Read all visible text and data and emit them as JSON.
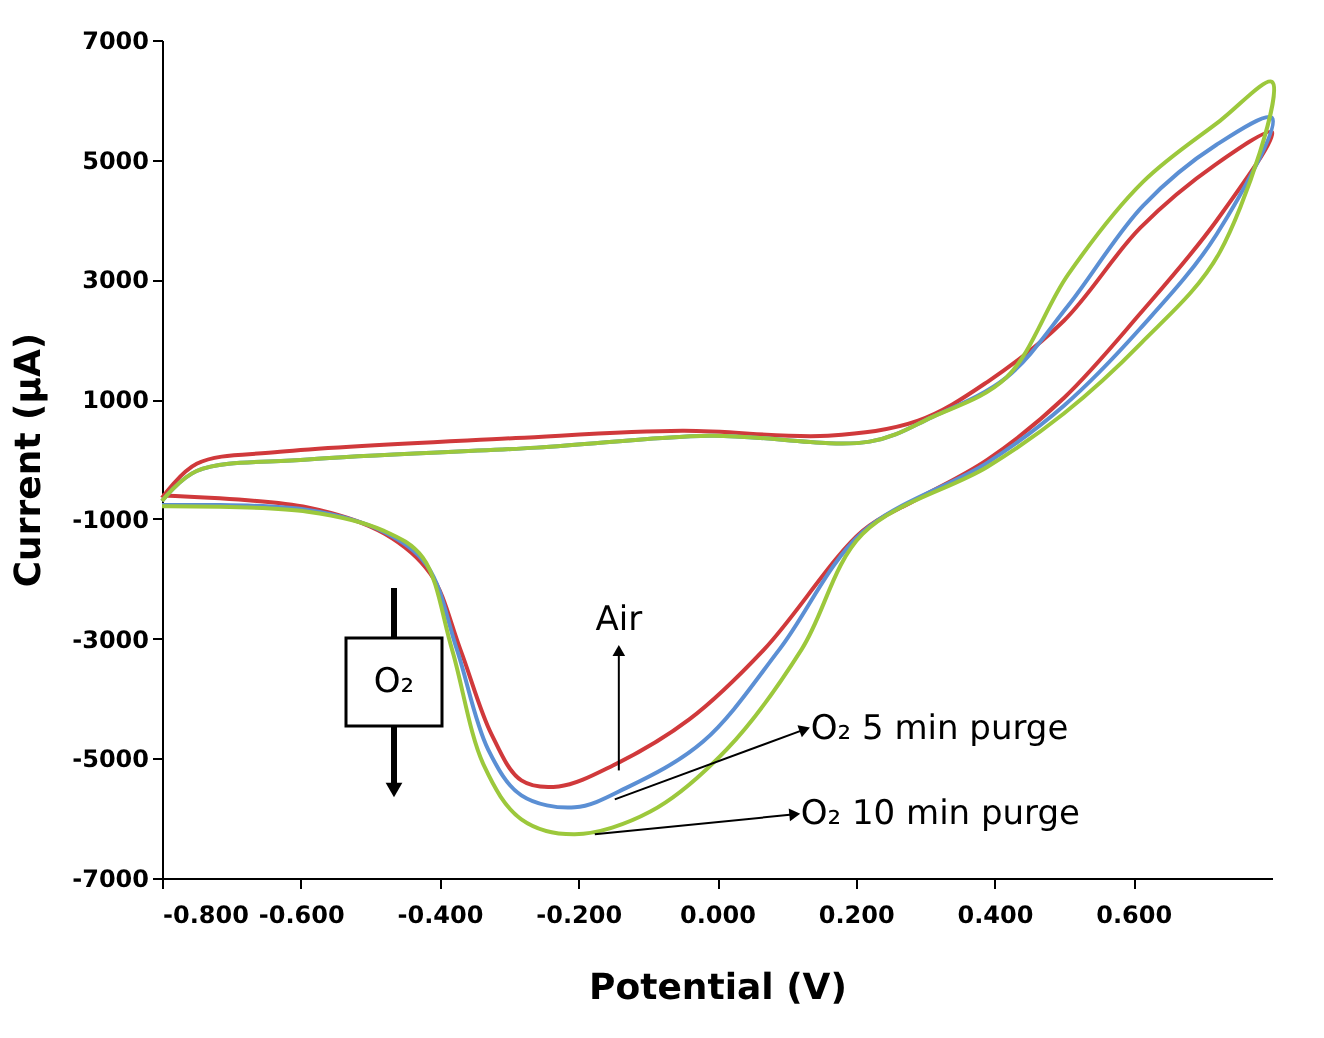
{
  "chart_data": {
    "type": "line",
    "xlabel": "Potential (V)",
    "ylabel": "Current (µA)",
    "xlim": [
      -0.8,
      0.8
    ],
    "xticks": [
      {
        "value": -0.8,
        "label": "-0.800"
      },
      {
        "value": -0.6,
        "label": "-0.600"
      },
      {
        "value": -0.4,
        "label": "-0.400"
      },
      {
        "value": -0.2,
        "label": "-0.200"
      },
      {
        "value": 0,
        "label": "0.000"
      },
      {
        "value": 0.2,
        "label": "0.200"
      },
      {
        "value": 0.4,
        "label": "0.400"
      },
      {
        "value": 0.6,
        "label": "0.600"
      }
    ],
    "ylim": [
      -7000,
      7000
    ],
    "yticks": [
      -7000,
      -5000,
      -3000,
      -1000,
      1000,
      3000,
      5000,
      7000
    ],
    "grid": false,
    "legend": false,
    "marker": "none",
    "line_style": "solid",
    "series": [
      {
        "name": "Air",
        "color": "#d0393b",
        "x": [
          -0.8,
          -0.75,
          -0.63,
          -0.29,
          -0.05,
          0.16,
          0.29,
          0.39,
          0.5,
          0.61,
          0.72,
          0.8,
          0.72,
          0.61,
          0.5,
          0.39,
          0.287,
          0.21,
          0.068,
          -0.04,
          -0.15,
          -0.228,
          -0.282,
          -0.325,
          -0.37,
          -0.413,
          -0.479,
          -0.59,
          -0.8
        ],
        "values": [
          -650,
          -80,
          120,
          350,
          470,
          390,
          640,
          1290,
          2310,
          3860,
          4930,
          5460,
          3980,
          2430,
          1020,
          -10,
          -680,
          -1200,
          -3180,
          -4350,
          -5120,
          -5470,
          -5370,
          -4600,
          -3180,
          -1920,
          -1250,
          -810,
          -610
        ]
      },
      {
        "name": "O₂ 5 min purge",
        "color": "#5b8fd4",
        "x": [
          -0.8,
          -0.75,
          -0.59,
          -0.26,
          -0.01,
          0.22,
          0.31,
          0.417,
          0.506,
          0.614,
          0.72,
          0.8,
          0.72,
          0.61,
          0.5,
          0.39,
          0.21,
          0.09,
          -0.02,
          -0.13,
          -0.205,
          -0.282,
          -0.33,
          -0.375,
          -0.418,
          -0.48,
          -0.59,
          -0.8
        ],
        "values": [
          -700,
          -200,
          -10,
          190,
          390,
          290,
          700,
          1360,
          2560,
          4230,
          5250,
          5700,
          3750,
          2180,
          890,
          -60,
          -1220,
          -3180,
          -4720,
          -5490,
          -5820,
          -5620,
          -4850,
          -3180,
          -1780,
          -1220,
          -850,
          -770
        ]
      },
      {
        "name": "O₂ 10 min purge",
        "color": "#9cc83c",
        "x": [
          -0.8,
          -0.75,
          -0.59,
          -0.26,
          -0.01,
          0.22,
          0.31,
          0.417,
          0.506,
          0.614,
          0.725,
          0.8,
          0.725,
          0.61,
          0.5,
          0.39,
          0.21,
          0.122,
          0.014,
          -0.096,
          -0.205,
          -0.282,
          -0.336,
          -0.382,
          -0.424,
          -0.48,
          -0.59,
          -0.8
        ],
        "values": [
          -700,
          -200,
          -10,
          190,
          390,
          290,
          700,
          1360,
          3080,
          4630,
          5650,
          6300,
          3460,
          1920,
          760,
          -130,
          -1250,
          -3180,
          -4850,
          -5890,
          -6270,
          -6020,
          -5120,
          -3180,
          -1650,
          -1200,
          -880,
          -790
        ]
      }
    ],
    "annotations": [
      "O₂"
    ]
  }
}
